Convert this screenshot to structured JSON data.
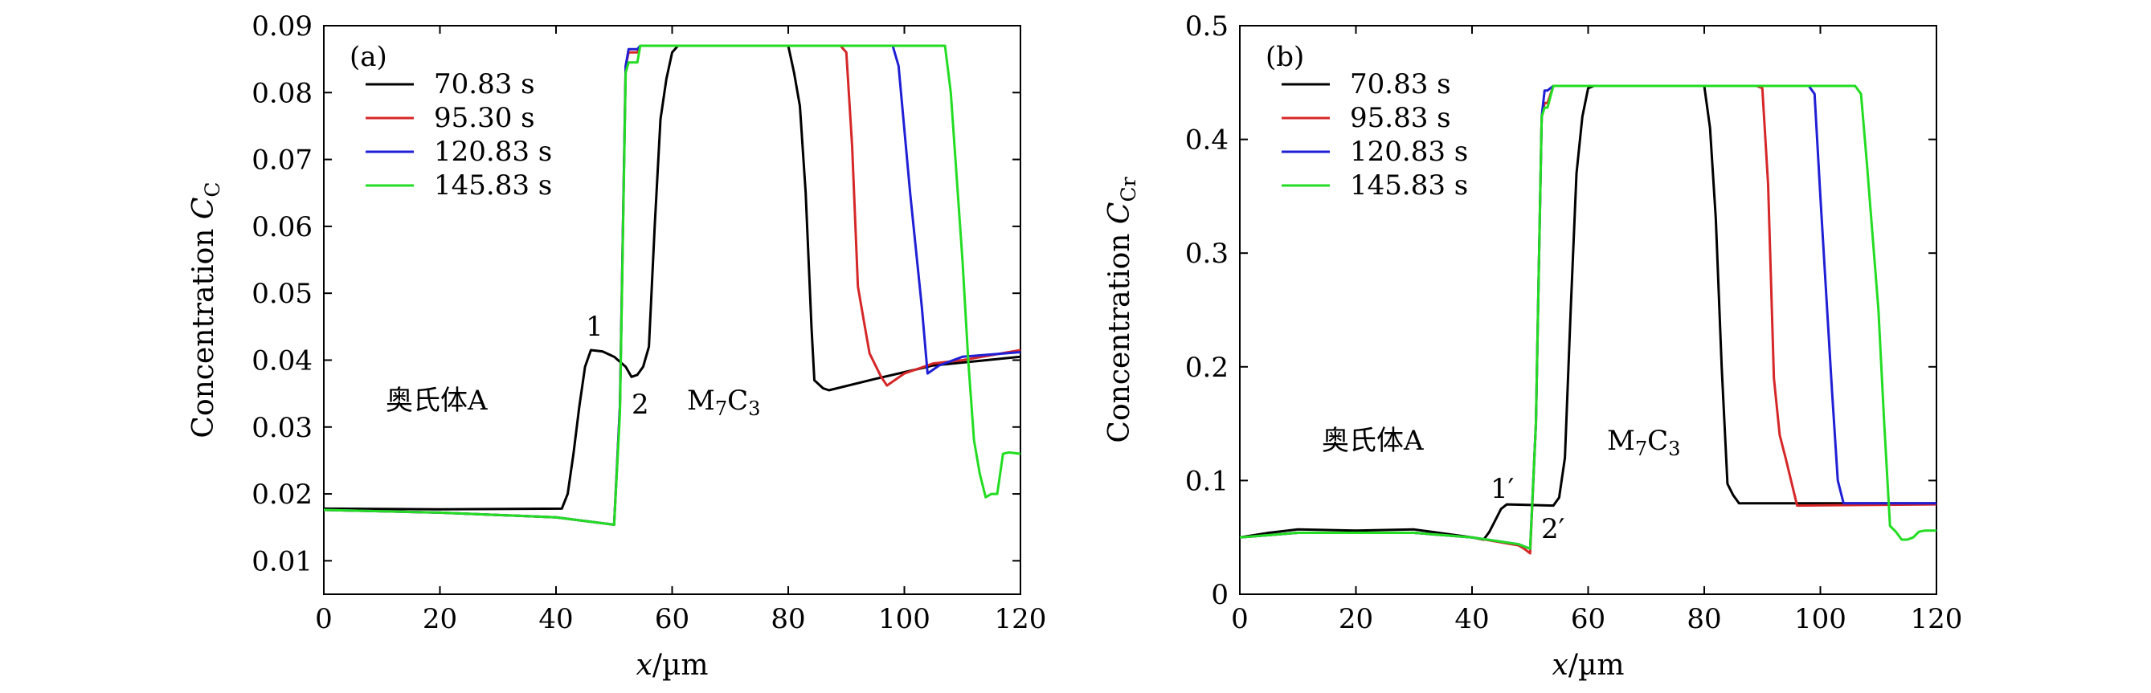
{
  "chart_data": [
    {
      "type": "line",
      "panel": "(a)",
      "xlabel_var": "x",
      "xlabel_unit": "/µm",
      "ylabel_main": "Concentration ",
      "ylabel_var": "C",
      "ylabel_sub": "C",
      "xlim": [
        0,
        120
      ],
      "ylim": [
        0.005,
        0.09
      ],
      "xticks": [
        0,
        20,
        40,
        60,
        80,
        100,
        120
      ],
      "yticks": [
        0.01,
        0.02,
        0.03,
        0.04,
        0.05,
        0.06,
        0.07,
        0.08,
        0.09
      ],
      "ytick_labels": [
        "0.01",
        "0.02",
        "0.03",
        "0.04",
        "0.05",
        "0.06",
        "0.07",
        "0.08",
        "0.09"
      ],
      "grid": false,
      "legend_position": "top-left",
      "annotations": {
        "austenite": "奥氏体A",
        "carbide_base": "M",
        "carbide_sub1": "7",
        "carbide_mid": "C",
        "carbide_sub2": "3",
        "point1": "1",
        "point2": "2"
      },
      "series": [
        {
          "name": "70.83 s",
          "color": "#000000",
          "points": [
            [
              0,
              0.0178
            ],
            [
              20,
              0.0177
            ],
            [
              41,
              0.0178
            ],
            [
              42,
              0.02
            ],
            [
              43,
              0.026
            ],
            [
              44,
              0.033
            ],
            [
              45,
              0.039
            ],
            [
              46,
              0.0415
            ],
            [
              48,
              0.0413
            ],
            [
              50,
              0.0405
            ],
            [
              52,
              0.039
            ],
            [
              53,
              0.0375
            ],
            [
              54,
              0.0378
            ],
            [
              55,
              0.039
            ],
            [
              56,
              0.042
            ],
            [
              57,
              0.06
            ],
            [
              58,
              0.076
            ],
            [
              59,
              0.082
            ],
            [
              60,
              0.086
            ],
            [
              61,
              0.087
            ],
            [
              80,
              0.087
            ],
            [
              81,
              0.083
            ],
            [
              82,
              0.078
            ],
            [
              83,
              0.065
            ],
            [
              84,
              0.045
            ],
            [
              84.5,
              0.037
            ],
            [
              86,
              0.0358
            ],
            [
              87,
              0.0355
            ],
            [
              95,
              0.0372
            ],
            [
              105,
              0.0392
            ],
            [
              120,
              0.0405
            ]
          ]
        },
        {
          "name": "95.30 s",
          "color": "#d62728",
          "points": [
            [
              0,
              0.0176
            ],
            [
              20,
              0.0172
            ],
            [
              40,
              0.0165
            ],
            [
              50,
              0.0154
            ],
            [
              51,
              0.033
            ],
            [
              52,
              0.084
            ],
            [
              52.5,
              0.086
            ],
            [
              54,
              0.086
            ],
            [
              54.5,
              0.087
            ],
            [
              89,
              0.087
            ],
            [
              90,
              0.086
            ],
            [
              91,
              0.072
            ],
            [
              92,
              0.051
            ],
            [
              93,
              0.046
            ],
            [
              94,
              0.041
            ],
            [
              96,
              0.0375
            ],
            [
              97,
              0.0362
            ],
            [
              100,
              0.038
            ],
            [
              105,
              0.0395
            ],
            [
              110,
              0.04
            ],
            [
              120,
              0.0415
            ]
          ]
        },
        {
          "name": "120.83 s",
          "color": "#1f1fd6",
          "points": [
            [
              0,
              0.0176
            ],
            [
              20,
              0.0172
            ],
            [
              40,
              0.0165
            ],
            [
              50,
              0.0154
            ],
            [
              51,
              0.033
            ],
            [
              52,
              0.084
            ],
            [
              52.5,
              0.0865
            ],
            [
              54,
              0.0865
            ],
            [
              54.5,
              0.087
            ],
            [
              98,
              0.087
            ],
            [
              99,
              0.084
            ],
            [
              101,
              0.065
            ],
            [
              103,
              0.048
            ],
            [
              104,
              0.038
            ],
            [
              106,
              0.0392
            ],
            [
              110,
              0.0405
            ],
            [
              120,
              0.0412
            ]
          ]
        },
        {
          "name": "145.83 s",
          "color": "#22dd22",
          "points": [
            [
              0,
              0.0176
            ],
            [
              20,
              0.0172
            ],
            [
              40,
              0.0165
            ],
            [
              50,
              0.0154
            ],
            [
              51,
              0.032
            ],
            [
              52,
              0.083
            ],
            [
              52.5,
              0.0845
            ],
            [
              54,
              0.0845
            ],
            [
              54.5,
              0.087
            ],
            [
              107,
              0.087
            ],
            [
              108,
              0.08
            ],
            [
              110,
              0.055
            ],
            [
              111,
              0.04
            ],
            [
              112,
              0.028
            ],
            [
              113,
              0.023
            ],
            [
              114,
              0.0195
            ],
            [
              115,
              0.02
            ],
            [
              116,
              0.02
            ],
            [
              117,
              0.026
            ],
            [
              118,
              0.0262
            ],
            [
              120,
              0.026
            ]
          ]
        }
      ]
    },
    {
      "type": "line",
      "panel": "(b)",
      "xlabel_var": "x",
      "xlabel_unit": "/µm",
      "ylabel_main": "Concentration ",
      "ylabel_var": "C",
      "ylabel_sub": "Cr",
      "xlim": [
        0,
        120
      ],
      "ylim": [
        0,
        0.5
      ],
      "xticks": [
        0,
        20,
        40,
        60,
        80,
        100,
        120
      ],
      "yticks": [
        0,
        0.1,
        0.2,
        0.3,
        0.4,
        0.5
      ],
      "ytick_labels": [
        "0",
        "0.1",
        "0.2",
        "0.3",
        "0.4",
        "0.5"
      ],
      "grid": false,
      "legend_position": "top-left",
      "annotations": {
        "austenite": "奥氏体A",
        "carbide_base": "M",
        "carbide_sub1": "7",
        "carbide_mid": "C",
        "carbide_sub2": "3",
        "point1": "1′",
        "point2": "2′"
      },
      "series": [
        {
          "name": "70.83 s",
          "color": "#000000",
          "points": [
            [
              0,
              0.05
            ],
            [
              5,
              0.054
            ],
            [
              10,
              0.057
            ],
            [
              20,
              0.056
            ],
            [
              30,
              0.057
            ],
            [
              40,
              0.05
            ],
            [
              42,
              0.048
            ],
            [
              43,
              0.055
            ],
            [
              44,
              0.065
            ],
            [
              45,
              0.075
            ],
            [
              46,
              0.079
            ],
            [
              54,
              0.078
            ],
            [
              55,
              0.085
            ],
            [
              56,
              0.12
            ],
            [
              57,
              0.25
            ],
            [
              58,
              0.37
            ],
            [
              59,
              0.42
            ],
            [
              60,
              0.445
            ],
            [
              61,
              0.447
            ],
            [
              80,
              0.447
            ],
            [
              81,
              0.41
            ],
            [
              82,
              0.33
            ],
            [
              83,
              0.2
            ],
            [
              84,
              0.097
            ],
            [
              85,
              0.087
            ],
            [
              86,
              0.08
            ],
            [
              100,
              0.08
            ],
            [
              120,
              0.08
            ]
          ]
        },
        {
          "name": "95.83 s",
          "color": "#d62728",
          "points": [
            [
              0,
              0.05
            ],
            [
              10,
              0.054
            ],
            [
              20,
              0.054
            ],
            [
              30,
              0.054
            ],
            [
              40,
              0.05
            ],
            [
              48,
              0.043
            ],
            [
              49,
              0.04
            ],
            [
              50,
              0.036
            ],
            [
              51,
              0.15
            ],
            [
              52,
              0.42
            ],
            [
              52.5,
              0.432
            ],
            [
              53,
              0.432
            ],
            [
              54,
              0.447
            ],
            [
              89,
              0.447
            ],
            [
              90,
              0.445
            ],
            [
              91,
              0.36
            ],
            [
              92,
              0.19
            ],
            [
              93,
              0.14
            ],
            [
              94,
              0.12
            ],
            [
              96,
              0.078
            ],
            [
              120,
              0.079
            ]
          ]
        },
        {
          "name": "120.83 s",
          "color": "#1f1fd6",
          "points": [
            [
              0,
              0.05
            ],
            [
              10,
              0.054
            ],
            [
              20,
              0.054
            ],
            [
              30,
              0.054
            ],
            [
              40,
              0.05
            ],
            [
              48,
              0.044
            ],
            [
              49,
              0.042
            ],
            [
              50,
              0.04
            ],
            [
              51,
              0.15
            ],
            [
              52,
              0.42
            ],
            [
              52.5,
              0.443
            ],
            [
              53,
              0.443
            ],
            [
              54,
              0.447
            ],
            [
              98,
              0.447
            ],
            [
              99,
              0.44
            ],
            [
              100,
              0.35
            ],
            [
              102,
              0.18
            ],
            [
              103,
              0.1
            ],
            [
              104,
              0.08
            ],
            [
              120,
              0.08
            ]
          ]
        },
        {
          "name": "145.83 s",
          "color": "#22dd22",
          "points": [
            [
              0,
              0.05
            ],
            [
              10,
              0.054
            ],
            [
              20,
              0.054
            ],
            [
              30,
              0.054
            ],
            [
              40,
              0.05
            ],
            [
              48,
              0.044
            ],
            [
              49,
              0.042
            ],
            [
              50,
              0.04
            ],
            [
              51,
              0.15
            ],
            [
              52,
              0.42
            ],
            [
              52.5,
              0.428
            ],
            [
              53,
              0.428
            ],
            [
              54,
              0.447
            ],
            [
              106,
              0.447
            ],
            [
              107,
              0.44
            ],
            [
              108,
              0.38
            ],
            [
              110,
              0.25
            ],
            [
              111,
              0.15
            ],
            [
              112,
              0.06
            ],
            [
              113,
              0.055
            ],
            [
              114,
              0.048
            ],
            [
              115,
              0.048
            ],
            [
              116,
              0.05
            ],
            [
              117,
              0.055
            ],
            [
              118,
              0.056
            ],
            [
              120,
              0.056
            ]
          ]
        }
      ]
    }
  ]
}
